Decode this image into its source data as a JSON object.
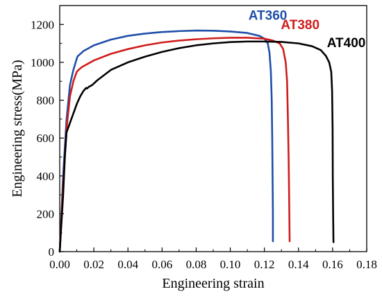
{
  "chart_data": {
    "type": "line",
    "title": "",
    "xlabel": "Engineering strain",
    "ylabel": "Engineering stress(MPa)",
    "xlim": [
      0,
      0.18
    ],
    "ylim": [
      0,
      1300
    ],
    "grid": false,
    "legend": "none",
    "x_ticks": [
      "0.00",
      "0.02",
      "0.04",
      "0.06",
      "0.08",
      "0.10",
      "0.12",
      "0.14",
      "0.16",
      "0.18"
    ],
    "y_ticks": [
      "0",
      "200",
      "400",
      "600",
      "800",
      "1000",
      "1200"
    ],
    "series": [
      {
        "name": "AT360",
        "color": "#1f4fa8",
        "points": [
          [
            0.0,
            0
          ],
          [
            0.002,
            400
          ],
          [
            0.004,
            700
          ],
          [
            0.006,
            880
          ],
          [
            0.008,
            960
          ],
          [
            0.01,
            1020
          ],
          [
            0.0105,
            1032
          ],
          [
            0.014,
            1060
          ],
          [
            0.02,
            1090
          ],
          [
            0.03,
            1120
          ],
          [
            0.04,
            1140
          ],
          [
            0.05,
            1152
          ],
          [
            0.06,
            1160
          ],
          [
            0.07,
            1165
          ],
          [
            0.08,
            1168
          ],
          [
            0.09,
            1167
          ],
          [
            0.1,
            1163
          ],
          [
            0.11,
            1155
          ],
          [
            0.117,
            1140
          ],
          [
            0.12,
            1125
          ],
          [
            0.122,
            1100
          ],
          [
            0.123,
            1050
          ],
          [
            0.1238,
            950
          ],
          [
            0.1243,
            800
          ],
          [
            0.1246,
            600
          ],
          [
            0.1248,
            400
          ],
          [
            0.125,
            200
          ],
          [
            0.125,
            55
          ]
        ]
      },
      {
        "name": "AT380",
        "color": "#d01c1c",
        "points": [
          [
            0.0,
            0
          ],
          [
            0.002,
            350
          ],
          [
            0.004,
            650
          ],
          [
            0.006,
            820
          ],
          [
            0.008,
            900
          ],
          [
            0.01,
            950
          ],
          [
            0.011,
            960
          ],
          [
            0.013,
            975
          ],
          [
            0.02,
            1010
          ],
          [
            0.03,
            1045
          ],
          [
            0.04,
            1070
          ],
          [
            0.05,
            1090
          ],
          [
            0.06,
            1105
          ],
          [
            0.07,
            1115
          ],
          [
            0.08,
            1122
          ],
          [
            0.09,
            1127
          ],
          [
            0.1,
            1130
          ],
          [
            0.11,
            1130
          ],
          [
            0.12,
            1125
          ],
          [
            0.125,
            1115
          ],
          [
            0.129,
            1100
          ],
          [
            0.131,
            1070
          ],
          [
            0.1325,
            1000
          ],
          [
            0.1333,
            900
          ],
          [
            0.1338,
            700
          ],
          [
            0.1342,
            500
          ],
          [
            0.1345,
            300
          ],
          [
            0.1348,
            55
          ]
        ]
      },
      {
        "name": "AT400",
        "color": "#000000",
        "points": [
          [
            0.0,
            0
          ],
          [
            0.002,
            300
          ],
          [
            0.003,
            500
          ],
          [
            0.004,
            630
          ],
          [
            0.006,
            680
          ],
          [
            0.008,
            730
          ],
          [
            0.01,
            780
          ],
          [
            0.012,
            820
          ],
          [
            0.014,
            850
          ],
          [
            0.0155,
            865
          ],
          [
            0.016,
            862
          ],
          [
            0.017,
            870
          ],
          [
            0.019,
            880
          ],
          [
            0.022,
            905
          ],
          [
            0.03,
            960
          ],
          [
            0.04,
            1000
          ],
          [
            0.05,
            1030
          ],
          [
            0.06,
            1055
          ],
          [
            0.07,
            1075
          ],
          [
            0.08,
            1090
          ],
          [
            0.09,
            1100
          ],
          [
            0.1,
            1107
          ],
          [
            0.11,
            1110
          ],
          [
            0.12,
            1110
          ],
          [
            0.13,
            1108
          ],
          [
            0.14,
            1100
          ],
          [
            0.148,
            1085
          ],
          [
            0.153,
            1065
          ],
          [
            0.156,
            1035
          ],
          [
            0.158,
            1000
          ],
          [
            0.1592,
            950
          ],
          [
            0.1597,
            850
          ],
          [
            0.16,
            650
          ],
          [
            0.1601,
            400
          ],
          [
            0.1603,
            200
          ],
          [
            0.1605,
            50
          ]
        ]
      }
    ],
    "annotations": [
      {
        "text": "AT360",
        "x": 0.122,
        "y": 1225,
        "color": "#1f4fa8"
      },
      {
        "text": "AT380",
        "x": 0.141,
        "y": 1175,
        "color": "#d01c1c"
      },
      {
        "text": "AT400",
        "x": 0.168,
        "y": 1080,
        "color": "#000000"
      }
    ]
  }
}
